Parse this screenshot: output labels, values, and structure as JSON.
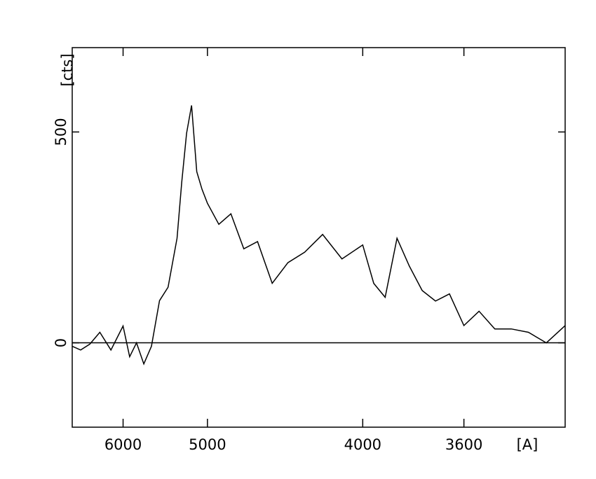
{
  "chart_data": {
    "type": "line",
    "x_label": "[A]",
    "y_label": "[cts]",
    "xscale": "inverse-square",
    "xlim": [
      7000,
      3300
    ],
    "xticks": [
      6000,
      5000,
      4000,
      3600
    ],
    "ylim": [
      -200,
      700
    ],
    "yticks": [
      0,
      500
    ],
    "zero_line": true,
    "x": [
      7000,
      6800,
      6600,
      6400,
      6200,
      6000,
      5900,
      5800,
      5700,
      5600,
      5500,
      5400,
      5300,
      5250,
      5200,
      5150,
      5100,
      5050,
      5000,
      4900,
      4800,
      4700,
      4600,
      4500,
      4400,
      4300,
      4200,
      4100,
      4000,
      3950,
      3900,
      3850,
      3800,
      3750,
      3700,
      3650,
      3600,
      3550,
      3500,
      3450,
      3400,
      3350,
      3300
    ],
    "series": [
      {
        "color": "#000000",
        "values": [
          -8,
          -17,
          -3,
          25,
          -17,
          40,
          -33,
          0,
          -50,
          -8,
          100,
          132,
          248,
          381,
          497,
          563,
          406,
          364,
          331,
          281,
          306,
          223,
          240,
          141,
          190,
          215,
          257,
          199,
          232,
          141,
          108,
          248,
          182,
          124,
          99,
          116,
          41,
          75,
          33,
          33,
          25,
          0,
          41
        ]
      }
    ]
  }
}
